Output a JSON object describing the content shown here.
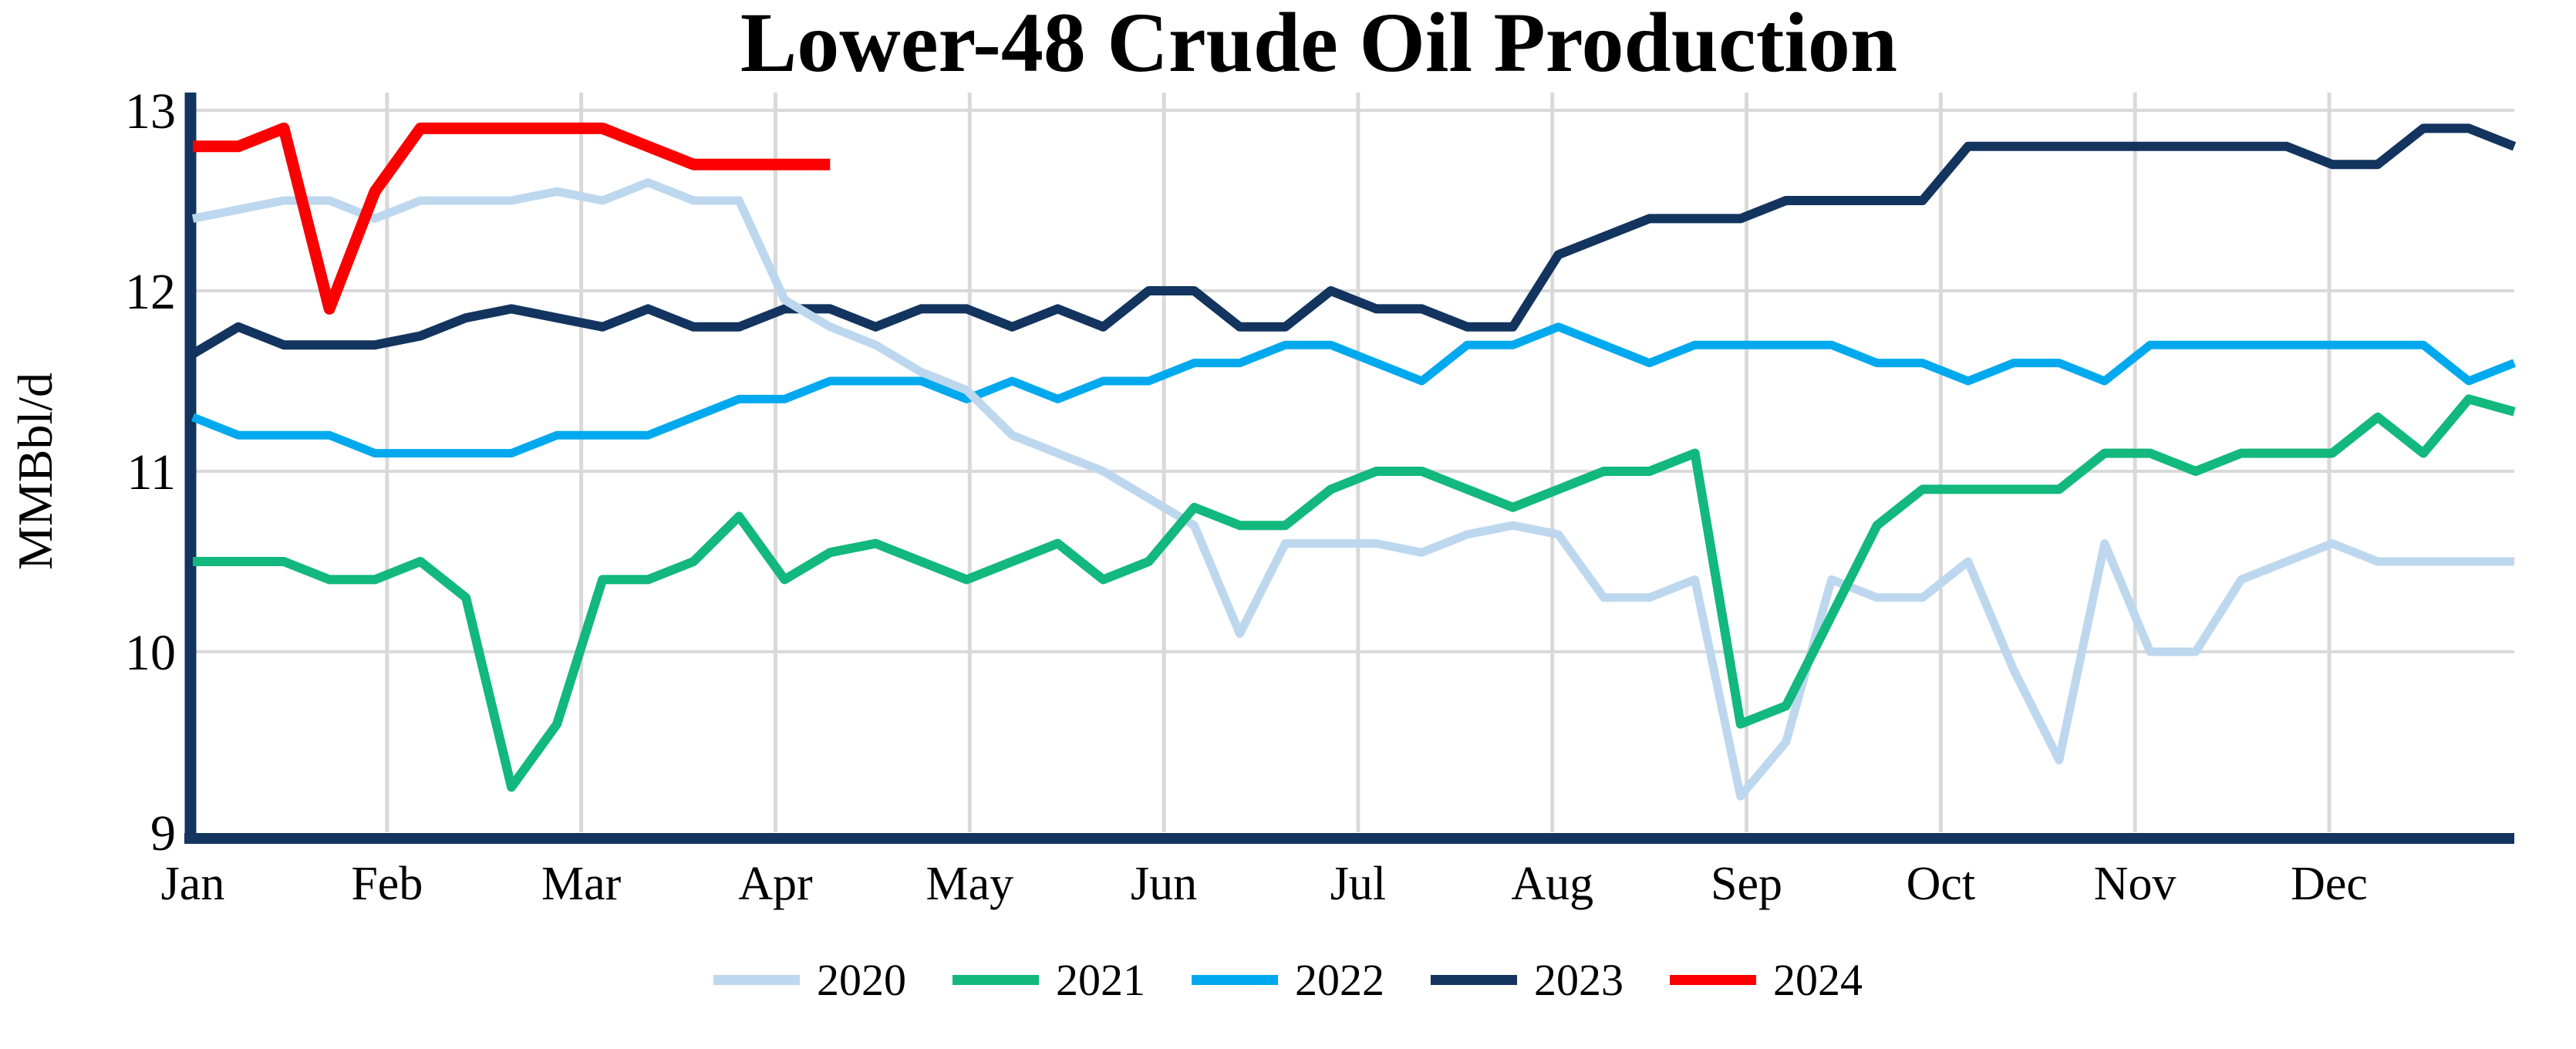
{
  "title": "Lower-48 Crude Oil Production",
  "y_axis": {
    "label": "MMBbl/d",
    "ticks": [
      "13",
      "12",
      "11",
      "10",
      "9"
    ],
    "min": 9,
    "max": 13
  },
  "x_axis": {
    "months": [
      "Jan",
      "Feb",
      "Mar",
      "Apr",
      "May",
      "Jun",
      "Jul",
      "Aug",
      "Sep",
      "Oct",
      "Nov",
      "Dec"
    ]
  },
  "colors": {
    "grid": "#D9D9D9",
    "axis": "#12345E",
    "background": "#FFFFFF"
  },
  "legend_position": "bottom",
  "chart_data": {
    "type": "line",
    "title": "Lower-48 Crude Oil Production",
    "xlabel": "",
    "ylabel": "MMBbl/d",
    "ylim": [
      9,
      13
    ],
    "x_unit": "week-of-year (Jan through Dec)",
    "grid": "on",
    "legend_position": "bottom",
    "series": [
      {
        "name": "2020",
        "color": "#BDD7EE",
        "values": [
          12.4,
          12.45,
          12.5,
          12.5,
          12.4,
          12.5,
          12.5,
          12.5,
          12.55,
          12.5,
          12.6,
          12.5,
          12.5,
          11.95,
          11.8,
          11.7,
          11.55,
          11.45,
          11.2,
          11.1,
          11.0,
          10.85,
          10.7,
          10.1,
          10.6,
          10.6,
          10.6,
          10.55,
          10.65,
          10.7,
          10.65,
          10.3,
          10.3,
          10.4,
          9.2,
          9.5,
          10.4,
          10.3,
          10.3,
          10.5,
          9.9,
          9.4,
          10.6,
          10.0,
          10.0,
          10.4,
          10.5,
          10.6,
          10.5,
          10.5,
          10.5,
          10.5
        ]
      },
      {
        "name": "2021",
        "color": "#12B87D",
        "values": [
          10.5,
          10.5,
          10.5,
          10.4,
          10.4,
          10.5,
          10.3,
          9.25,
          9.6,
          10.4,
          10.4,
          10.5,
          10.75,
          10.4,
          10.55,
          10.6,
          10.5,
          10.4,
          10.5,
          10.6,
          10.4,
          10.5,
          10.8,
          10.7,
          10.7,
          10.9,
          11.0,
          11.0,
          10.9,
          10.8,
          10.9,
          11.0,
          11.0,
          11.1,
          9.6,
          9.7,
          10.2,
          10.7,
          10.9,
          10.9,
          10.9,
          10.9,
          11.1,
          11.1,
          11.0,
          11.1,
          11.1,
          11.1,
          11.3,
          11.1,
          11.4,
          11.33
        ]
      },
      {
        "name": "2022",
        "color": "#00A9EE",
        "values": [
          11.3,
          11.2,
          11.2,
          11.2,
          11.1,
          11.1,
          11.1,
          11.1,
          11.2,
          11.2,
          11.2,
          11.3,
          11.4,
          11.4,
          11.5,
          11.5,
          11.5,
          11.4,
          11.5,
          11.4,
          11.5,
          11.5,
          11.6,
          11.6,
          11.7,
          11.7,
          11.6,
          11.5,
          11.7,
          11.7,
          11.8,
          11.7,
          11.6,
          11.7,
          11.7,
          11.7,
          11.7,
          11.6,
          11.6,
          11.5,
          11.6,
          11.6,
          11.5,
          11.7,
          11.7,
          11.7,
          11.7,
          11.7,
          11.7,
          11.7,
          11.5,
          11.6
        ]
      },
      {
        "name": "2023",
        "color": "#12345E",
        "values": [
          11.65,
          11.8,
          11.7,
          11.7,
          11.7,
          11.75,
          11.85,
          11.9,
          11.85,
          11.8,
          11.9,
          11.8,
          11.8,
          11.9,
          11.9,
          11.8,
          11.9,
          11.9,
          11.8,
          11.9,
          11.8,
          12.0,
          12.0,
          11.8,
          11.8,
          12.0,
          11.9,
          11.9,
          11.8,
          11.8,
          12.2,
          12.3,
          12.4,
          12.4,
          12.4,
          12.5,
          12.5,
          12.5,
          12.5,
          12.8,
          12.8,
          12.8,
          12.8,
          12.8,
          12.8,
          12.8,
          12.8,
          12.7,
          12.7,
          12.9,
          12.9,
          12.8
        ]
      },
      {
        "name": "2024",
        "color": "#FA0000",
        "values": [
          12.8,
          12.8,
          12.9,
          11.9,
          12.55,
          12.9,
          12.9,
          12.9,
          12.9,
          12.9,
          12.8,
          12.7,
          12.7,
          12.7,
          12.7
        ]
      }
    ]
  }
}
